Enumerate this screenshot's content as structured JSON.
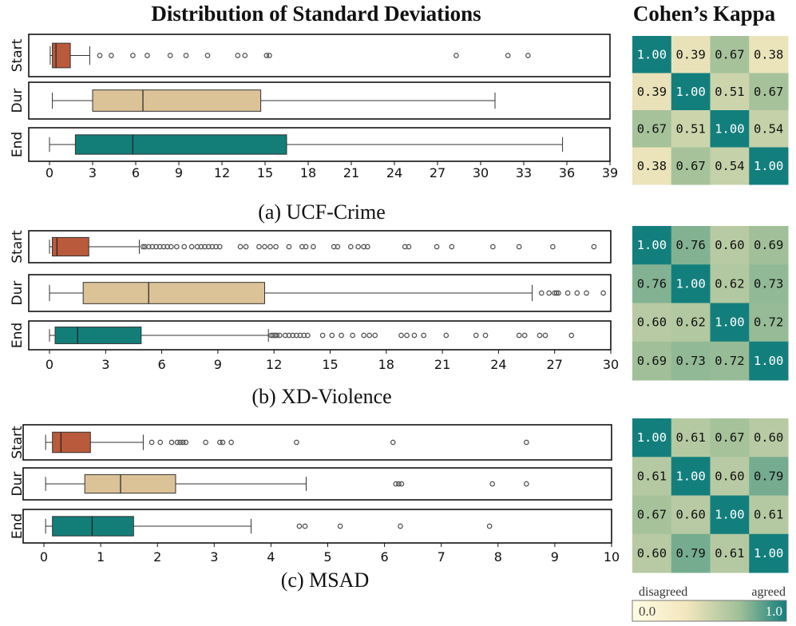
{
  "titles": {
    "left": "Distribution of Standard Deviations",
    "right": "Cohen’s Kappa"
  },
  "colorbar": {
    "low_label": "disagreed",
    "high_label": "agreed",
    "min_text": "0.0",
    "max_text": "1.0",
    "colors": [
      "#fffde3",
      "#f2e6bd",
      "#9fbf98",
      "#137f7d"
    ]
  },
  "colors": {
    "start": "#b85a3b",
    "dur": "#dcc297",
    "end": "#137d78"
  },
  "chart_data": [
    {
      "type": "box",
      "caption": "(a) UCF-Crime",
      "rows": [
        "Start",
        "Dur",
        "End"
      ],
      "xlim": [
        0,
        39
      ],
      "xticks": [
        0,
        3,
        6,
        9,
        12,
        15,
        18,
        21,
        24,
        27,
        30,
        33,
        36,
        39
      ],
      "boxes": [
        {
          "label": "Start",
          "whislo": 0.05,
          "q1": 0.2,
          "med": 0.45,
          "q3": 1.45,
          "whishi": 2.8,
          "fliers": [
            3.5,
            4.3,
            5.8,
            6.8,
            8.4,
            9.5,
            11.0,
            13.1,
            13.6,
            15.1,
            15.3,
            28.3,
            31.9,
            33.3
          ]
        },
        {
          "label": "Dur",
          "whislo": 0.2,
          "q1": 3.0,
          "med": 6.5,
          "q3": 14.7,
          "whishi": 31.0,
          "fliers": []
        },
        {
          "label": "End",
          "whislo": 0.0,
          "q1": 1.8,
          "med": 5.8,
          "q3": 16.5,
          "whishi": 35.7,
          "fliers": []
        }
      ]
    },
    {
      "type": "heatmap",
      "title": "Cohen’s Kappa",
      "values": [
        [
          1.0,
          0.39,
          0.67,
          0.38
        ],
        [
          0.39,
          1.0,
          0.51,
          0.67
        ],
        [
          0.67,
          0.51,
          1.0,
          0.54
        ],
        [
          0.38,
          0.67,
          0.54,
          1.0
        ]
      ],
      "labels": [
        [
          "1.00",
          "0.39",
          "0.67",
          "0.38"
        ],
        [
          "0.39",
          "1.00",
          "0.51",
          "0.67"
        ],
        [
          "0.67",
          "0.51",
          "1.00",
          "0.54"
        ],
        [
          "0.38",
          "0.67",
          "0.54",
          "1.00"
        ]
      ]
    },
    {
      "type": "box",
      "caption": "(b) XD-Violence",
      "rows": [
        "Start",
        "Dur",
        "End"
      ],
      "xlim": [
        0,
        30
      ],
      "xticks": [
        0,
        3,
        6,
        9,
        12,
        15,
        18,
        21,
        24,
        27,
        30
      ],
      "boxes": [
        {
          "label": "Start",
          "whislo": 0.0,
          "q1": 0.15,
          "med": 0.4,
          "q3": 2.1,
          "whishi": 4.8,
          "fliers": [
            5.0,
            5.1,
            5.3,
            5.5,
            5.7,
            5.9,
            6.1,
            6.3,
            6.5,
            6.8,
            7.2,
            7.6,
            7.9,
            8.1,
            8.3,
            8.5,
            8.7,
            8.9,
            9.1,
            10.2,
            10.5,
            11.2,
            11.5,
            11.8,
            12.1,
            12.8,
            13.5,
            13.7,
            14.1,
            15.2,
            15.4,
            16.1,
            16.5,
            16.8,
            17.0,
            19.0,
            19.2,
            20.7,
            21.5,
            23.7,
            25.1,
            26.9,
            29.1
          ]
        },
        {
          "label": "Dur",
          "whislo": 0.0,
          "q1": 1.8,
          "med": 5.3,
          "q3": 11.5,
          "whishi": 25.8,
          "fliers": [
            26.3,
            26.7,
            27.0,
            27.1,
            27.2,
            27.7,
            28.2,
            28.7,
            29.6
          ]
        },
        {
          "label": "End",
          "whislo": 0.0,
          "q1": 0.3,
          "med": 1.5,
          "q3": 4.9,
          "whishi": 11.7,
          "fliers": [
            11.85,
            11.95,
            12.05,
            12.15,
            12.3,
            12.6,
            12.8,
            13.0,
            13.2,
            13.4,
            13.6,
            13.8,
            14.6,
            15.1,
            15.6,
            16.2,
            16.8,
            17.1,
            17.4,
            18.8,
            19.1,
            19.5,
            20.0,
            21.2,
            22.8,
            23.3,
            25.1,
            25.4,
            26.2,
            26.5,
            27.9
          ]
        }
      ]
    },
    {
      "type": "heatmap",
      "values": [
        [
          1.0,
          0.76,
          0.6,
          0.69
        ],
        [
          0.76,
          1.0,
          0.62,
          0.73
        ],
        [
          0.6,
          0.62,
          1.0,
          0.72
        ],
        [
          0.69,
          0.73,
          0.72,
          1.0
        ]
      ],
      "labels": [
        [
          "1.00",
          "0.76",
          "0.60",
          "0.69"
        ],
        [
          "0.76",
          "1.00",
          "0.62",
          "0.73"
        ],
        [
          "0.60",
          "0.62",
          "1.00",
          "0.72"
        ],
        [
          "0.69",
          "0.73",
          "0.72",
          "1.00"
        ]
      ]
    },
    {
      "type": "box",
      "caption": "(c) MSAD",
      "rows": [
        "Start",
        "Dur",
        "End"
      ],
      "xlim": [
        0,
        10
      ],
      "xticks": [
        0,
        1,
        2,
        3,
        4,
        5,
        6,
        7,
        8,
        9,
        10
      ],
      "boxes": [
        {
          "label": "Start",
          "whislo": 0.03,
          "q1": 0.15,
          "med": 0.3,
          "q3": 0.82,
          "whishi": 1.75,
          "fliers": [
            1.9,
            2.05,
            2.25,
            2.35,
            2.4,
            2.45,
            2.5,
            2.85,
            3.1,
            3.15,
            3.3,
            4.45,
            6.15,
            8.5
          ]
        },
        {
          "label": "Dur",
          "whislo": 0.03,
          "q1": 0.72,
          "med": 1.35,
          "q3": 2.32,
          "whishi": 4.62,
          "fliers": [
            6.2,
            6.25,
            6.3,
            7.9,
            8.5
          ]
        },
        {
          "label": "End",
          "whislo": 0.03,
          "q1": 0.15,
          "med": 0.85,
          "q3": 1.58,
          "whishi": 3.65,
          "fliers": [
            4.5,
            4.6,
            5.22,
            6.28,
            7.85
          ]
        }
      ]
    },
    {
      "type": "heatmap",
      "values": [
        [
          1.0,
          0.61,
          0.67,
          0.6
        ],
        [
          0.61,
          1.0,
          0.6,
          0.79
        ],
        [
          0.67,
          0.6,
          1.0,
          0.61
        ],
        [
          0.6,
          0.79,
          0.61,
          1.0
        ]
      ],
      "labels": [
        [
          "1.00",
          "0.61",
          "0.67",
          "0.60"
        ],
        [
          "0.61",
          "1.00",
          "0.60",
          "0.79"
        ],
        [
          "0.67",
          "0.60",
          "1.00",
          "0.61"
        ],
        [
          "0.60",
          "0.79",
          "0.61",
          "1.00"
        ]
      ]
    }
  ]
}
